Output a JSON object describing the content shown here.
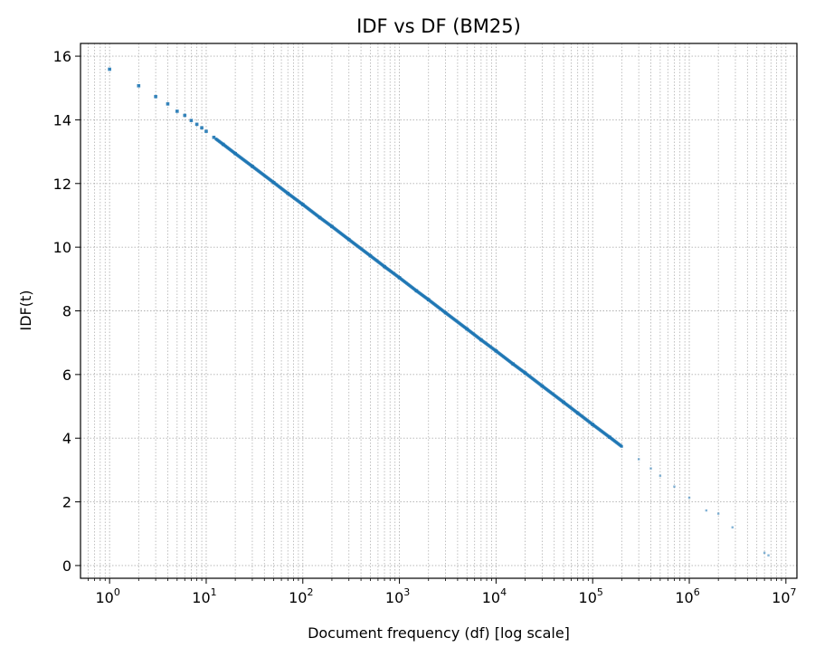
{
  "chart_data": {
    "type": "scatter",
    "title": "IDF vs DF (BM25)",
    "xlabel": "Document frequency (df) [log scale]",
    "ylabel": "IDF(t)",
    "x_scale": "log",
    "xlim": [
      0.5,
      13000000
    ],
    "ylim": [
      -0.4,
      16.4
    ],
    "x_ticks": [
      {
        "base": "10",
        "exp": "0"
      },
      {
        "base": "10",
        "exp": "1"
      },
      {
        "base": "10",
        "exp": "2"
      },
      {
        "base": "10",
        "exp": "3"
      },
      {
        "base": "10",
        "exp": "4"
      },
      {
        "base": "10",
        "exp": "5"
      },
      {
        "base": "10",
        "exp": "6"
      },
      {
        "base": "10",
        "exp": "7"
      }
    ],
    "x_tick_values": [
      1,
      10,
      100,
      1000,
      10000,
      100000,
      1000000,
      10000000
    ],
    "y_ticks": [
      "0",
      "2",
      "4",
      "6",
      "8",
      "10",
      "12",
      "14",
      "16"
    ],
    "y_tick_values": [
      0,
      2,
      4,
      6,
      8,
      10,
      12,
      14,
      16
    ],
    "grid": true,
    "marker_color": "#1f77b4",
    "points": {
      "df": [
        1,
        2,
        3,
        4,
        5,
        6,
        7,
        8,
        9,
        10,
        12,
        15,
        20,
        30,
        50,
        70,
        100,
        150,
        200,
        300,
        500,
        700,
        1000,
        1500,
        2000,
        3000,
        5000,
        7000,
        10000,
        15000,
        20000,
        30000,
        50000,
        70000,
        100000,
        150000,
        200000,
        300000,
        400000,
        500000,
        700000,
        1000000,
        1500000,
        2000000,
        2800000,
        6000000,
        6600000
      ],
      "idf": [
        15.59,
        15.07,
        14.73,
        14.5,
        14.27,
        14.14,
        13.98,
        13.86,
        13.75,
        13.64,
        13.45,
        13.23,
        12.94,
        12.54,
        12.03,
        11.69,
        11.34,
        10.93,
        10.65,
        10.24,
        9.73,
        9.39,
        9.04,
        8.63,
        8.35,
        7.94,
        7.43,
        7.09,
        6.74,
        6.33,
        6.05,
        5.64,
        5.13,
        4.79,
        4.43,
        4.03,
        3.74,
        3.34,
        3.05,
        2.82,
        2.48,
        2.13,
        1.73,
        1.63,
        1.2,
        0.4,
        0.32
      ]
    }
  }
}
